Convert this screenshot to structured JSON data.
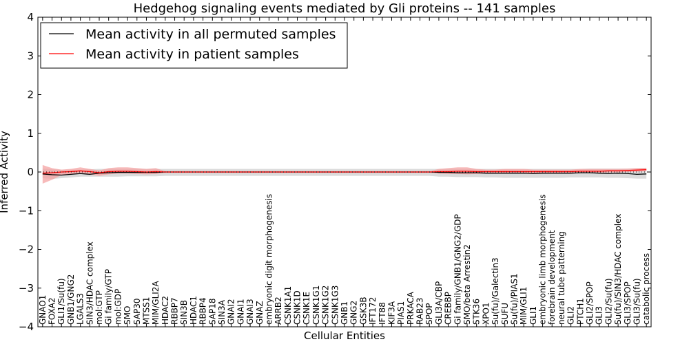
{
  "chart_data": {
    "type": "line",
    "title": "Hedgehog signaling events mediated by Gli proteins -- 141 samples",
    "xlabel": "Cellular Entities",
    "ylabel": "Inferred Activity",
    "ylim": [
      -4,
      4
    ],
    "yticks": [
      -4,
      -3,
      -2,
      -1,
      0,
      1,
      2,
      3,
      4
    ],
    "ytick_labels": [
      "−4",
      "−3",
      "−2",
      "−1",
      "0",
      "1",
      "2",
      "3",
      "4"
    ],
    "legend_position": "top-left",
    "categories": [
      "GNAO1",
      "FOXA2",
      "GLI1/Su(fu)",
      "GNB1/GNG2",
      "LGALS3",
      "SIN3/HDAC complex",
      "mol:GTP",
      "Gi family/GTP",
      "mol:GDP",
      "SMO",
      "SAP30",
      "MTSS1",
      "MIM/GLI2A",
      "HDAC2",
      "RBBP7",
      "SIN3B",
      "HDAC1",
      "RBBP4",
      "SAP18",
      "SIN3A",
      "GNAI2",
      "GNAI1",
      "GNAI3",
      "GNAZ",
      "embryonic digit morphogenesis",
      "ARRB2",
      "CSNK1A1",
      "CSNK1D",
      "CSNK1E",
      "CSNK1G1",
      "CSNK1G2",
      "CSNK1G3",
      "GNB1",
      "GNG2",
      "GSK3B",
      "IFT172",
      "IFT88",
      "KIF3A",
      "PIAS1",
      "PRKACA",
      "RAB23",
      "SPOP",
      "GLI3A/CBP",
      "CREBBP",
      "Gi family/GNB1/GNG2/GDP",
      "SMO/beta Arrestin2",
      "STK36",
      "XPO1",
      "Su(fu)/Galectin3",
      "SUFU",
      "Su(fu)/PIAS1",
      "MIM/GLI1",
      "GLI1",
      "embryonic limb morphogenesis",
      "forebrain development",
      "neural tube patterning",
      "GLI2",
      "PTCH1",
      "GLI2/SPOP",
      "GLI3",
      "GLI2/Su(fu)",
      "Su(fu)/SIN3/HDAC complex",
      "GLI3/SPOP",
      "GLI3/Su(fu)",
      "catabolic process"
    ],
    "series": [
      {
        "name": "Mean activity in all permuted samples",
        "color": "#000000",
        "values": [
          -0.05,
          -0.07,
          -0.08,
          -0.06,
          -0.04,
          -0.06,
          -0.03,
          -0.02,
          -0.01,
          -0.01,
          -0.01,
          -0.01,
          -0.01,
          0.0,
          0.0,
          0.0,
          0.0,
          0.0,
          0.0,
          0.0,
          0.0,
          0.0,
          0.0,
          0.0,
          0.0,
          0.0,
          0.0,
          0.0,
          0.0,
          0.0,
          0.0,
          0.0,
          0.0,
          0.0,
          0.0,
          0.0,
          0.0,
          0.0,
          0.0,
          0.0,
          0.0,
          0.0,
          -0.01,
          -0.01,
          -0.02,
          -0.02,
          -0.02,
          -0.03,
          -0.03,
          -0.03,
          -0.03,
          -0.03,
          -0.04,
          -0.03,
          -0.03,
          -0.03,
          -0.03,
          -0.02,
          -0.02,
          -0.03,
          -0.04,
          -0.03,
          -0.04,
          -0.06,
          -0.05
        ],
        "band": {
          "color": "#cccccc",
          "lower": [
            -0.16,
            -0.18,
            -0.16,
            -0.14,
            -0.12,
            -0.12,
            -0.12,
            -0.12,
            -0.12,
            -0.11,
            -0.11,
            -0.11,
            -0.11,
            -0.1,
            -0.1,
            -0.1,
            -0.1,
            -0.1,
            -0.1,
            -0.1,
            -0.1,
            -0.1,
            -0.1,
            -0.1,
            -0.1,
            -0.1,
            -0.1,
            -0.1,
            -0.1,
            -0.1,
            -0.1,
            -0.1,
            -0.1,
            -0.1,
            -0.1,
            -0.1,
            -0.1,
            -0.1,
            -0.1,
            -0.1,
            -0.1,
            -0.1,
            -0.12,
            -0.12,
            -0.13,
            -0.13,
            -0.13,
            -0.14,
            -0.14,
            -0.15,
            -0.15,
            -0.15,
            -0.15,
            -0.15,
            -0.15,
            -0.15,
            -0.14,
            -0.14,
            -0.14,
            -0.14,
            -0.15,
            -0.15,
            -0.16,
            -0.17,
            -0.17
          ],
          "upper": [
            0.09,
            0.07,
            0.06,
            0.06,
            0.06,
            0.07,
            0.08,
            0.08,
            0.08,
            0.08,
            0.08,
            0.08,
            0.08,
            0.08,
            0.08,
            0.08,
            0.08,
            0.08,
            0.08,
            0.08,
            0.08,
            0.08,
            0.08,
            0.08,
            0.08,
            0.08,
            0.08,
            0.08,
            0.08,
            0.08,
            0.08,
            0.08,
            0.08,
            0.08,
            0.08,
            0.08,
            0.08,
            0.08,
            0.08,
            0.08,
            0.08,
            0.08,
            0.08,
            0.08,
            0.08,
            0.08,
            0.08,
            0.08,
            0.08,
            0.08,
            0.08,
            0.08,
            0.08,
            0.08,
            0.08,
            0.08,
            0.08,
            0.08,
            0.09,
            0.09,
            0.09,
            0.09,
            0.09,
            0.09,
            0.09
          ]
        }
      },
      {
        "name": "Mean activity in patient samples",
        "color": "#ff0000",
        "values": [
          -0.03,
          -0.02,
          0.0,
          0.01,
          0.03,
          0.01,
          -0.02,
          0.01,
          0.02,
          0.02,
          0.01,
          0.0,
          0.01,
          0.0,
          0.0,
          0.0,
          0.0,
          0.0,
          0.0,
          0.0,
          0.0,
          0.0,
          0.0,
          0.0,
          0.0,
          0.0,
          0.0,
          0.0,
          0.0,
          0.0,
          0.0,
          0.0,
          0.0,
          0.0,
          0.0,
          0.0,
          0.0,
          0.0,
          0.0,
          0.0,
          0.0,
          0.0,
          0.01,
          0.01,
          0.02,
          0.02,
          0.01,
          0.01,
          0.01,
          0.01,
          0.01,
          0.01,
          0.01,
          0.01,
          0.01,
          0.01,
          0.01,
          0.02,
          0.02,
          0.02,
          0.03,
          0.03,
          0.04,
          0.05,
          0.06
        ],
        "band": {
          "color": "#f4a3a3",
          "lower": [
            -0.3,
            -0.2,
            -0.08,
            -0.06,
            -0.02,
            -0.06,
            -0.1,
            -0.06,
            -0.04,
            -0.04,
            -0.05,
            -0.06,
            -0.05,
            -0.02,
            -0.02,
            -0.02,
            -0.02,
            -0.02,
            -0.02,
            -0.02,
            -0.02,
            -0.02,
            -0.02,
            -0.02,
            -0.02,
            -0.02,
            -0.02,
            -0.02,
            -0.02,
            -0.02,
            -0.02,
            -0.02,
            -0.02,
            -0.02,
            -0.02,
            -0.02,
            -0.02,
            -0.02,
            -0.02,
            -0.02,
            -0.02,
            -0.02,
            -0.04,
            -0.05,
            -0.05,
            -0.06,
            -0.05,
            -0.04,
            -0.04,
            -0.03,
            -0.03,
            -0.03,
            -0.03,
            -0.03,
            -0.03,
            -0.03,
            -0.02,
            -0.02,
            -0.02,
            -0.02,
            -0.01,
            -0.01,
            0.0,
            0.01,
            0.02
          ],
          "upper": [
            0.18,
            0.1,
            0.06,
            0.08,
            0.12,
            0.08,
            0.04,
            0.1,
            0.12,
            0.12,
            0.1,
            0.08,
            0.1,
            0.02,
            0.02,
            0.02,
            0.02,
            0.02,
            0.02,
            0.02,
            0.02,
            0.02,
            0.02,
            0.02,
            0.02,
            0.02,
            0.02,
            0.02,
            0.02,
            0.02,
            0.02,
            0.02,
            0.02,
            0.02,
            0.02,
            0.02,
            0.02,
            0.02,
            0.02,
            0.02,
            0.02,
            0.02,
            0.08,
            0.1,
            0.12,
            0.12,
            0.08,
            0.06,
            0.06,
            0.08,
            0.08,
            0.08,
            0.06,
            0.06,
            0.06,
            0.06,
            0.06,
            0.08,
            0.08,
            0.08,
            0.08,
            0.08,
            0.09,
            0.1,
            0.11
          ]
        }
      }
    ]
  }
}
